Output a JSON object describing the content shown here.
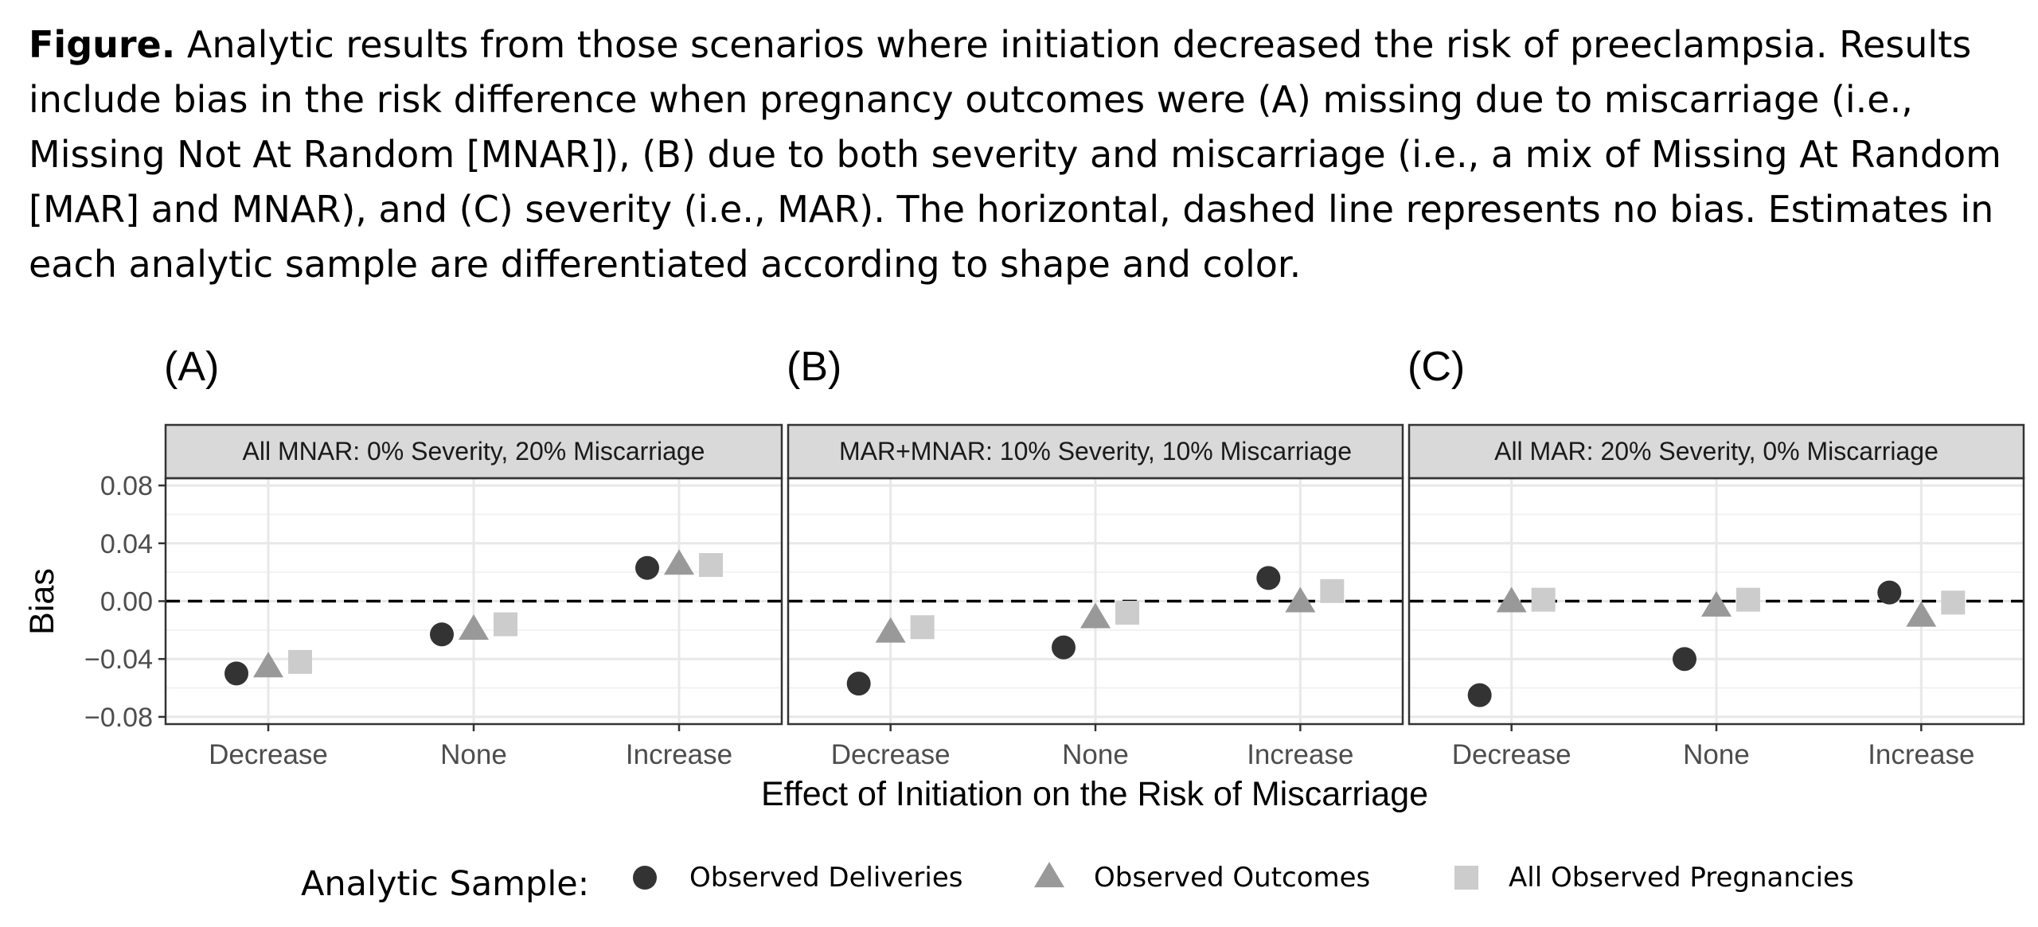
{
  "caption": {
    "bold_prefix": "Figure.",
    "text": " Analytic results from those scenarios where initiation decreased the risk of preeclampsia. Results include bias in the risk difference when pregnancy outcomes were (A) missing due to miscarriage (i.e., Missing Not At Random [MNAR]), (B) due to both severity and miscarriage (i.e., a mix of Missing At Random [MAR] and MNAR), and (C) severity (i.e., MAR). The horizontal, dashed line represents no bias. Estimates in each analytic sample are differentiated according to shape and color."
  },
  "chart_data": {
    "type": "scatter",
    "xlabel": "Effect of Initiation on the Risk of Miscarriage",
    "ylabel": "Bias",
    "categories": [
      "Decrease",
      "None",
      "Increase"
    ],
    "ylim": [
      -0.085,
      0.085
    ],
    "yticks": [
      -0.08,
      -0.04,
      0.0,
      0.04,
      0.08
    ],
    "ytick_labels": [
      "−0.08",
      "−0.04",
      "0.00",
      "0.04",
      "0.08"
    ],
    "reference_line": {
      "y": 0,
      "style": "dashed"
    },
    "grid": true,
    "legend": {
      "title": "Analytic Sample:",
      "position": "bottom",
      "entries": [
        {
          "name": "Observed Deliveries",
          "shape": "circle",
          "color": "#333333"
        },
        {
          "name": "Observed Outcomes",
          "shape": "triangle",
          "color": "#999999"
        },
        {
          "name": "All Observed Pregnancies",
          "shape": "square",
          "color": "#cccccc"
        }
      ]
    },
    "panels": [
      {
        "label": "(A)",
        "strip": "All MNAR: 0% Severity, 20% Miscarriage",
        "series": [
          {
            "name": "Observed Deliveries",
            "values": [
              -0.05,
              -0.023,
              0.023
            ]
          },
          {
            "name": "Observed Outcomes",
            "values": [
              -0.046,
              -0.02,
              0.025
            ]
          },
          {
            "name": "All Observed Pregnancies",
            "values": [
              -0.042,
              -0.016,
              0.025
            ]
          }
        ]
      },
      {
        "label": "(B)",
        "strip": "MAR+MNAR: 10% Severity, 10% Miscarriage",
        "series": [
          {
            "name": "Observed Deliveries",
            "values": [
              -0.057,
              -0.032,
              0.016
            ]
          },
          {
            "name": "Observed Outcomes",
            "values": [
              -0.022,
              -0.012,
              -0.001
            ]
          },
          {
            "name": "All Observed Pregnancies",
            "values": [
              -0.018,
              -0.008,
              0.007
            ]
          }
        ]
      },
      {
        "label": "(C)",
        "strip": "All MAR: 20% Severity, 0% Miscarriage",
        "series": [
          {
            "name": "Observed Deliveries",
            "values": [
              -0.065,
              -0.04,
              0.006
            ]
          },
          {
            "name": "Observed Outcomes",
            "values": [
              -0.001,
              -0.004,
              -0.011
            ]
          },
          {
            "name": "All Observed Pregnancies",
            "values": [
              0.001,
              0.001,
              -0.001
            ]
          }
        ]
      }
    ]
  }
}
